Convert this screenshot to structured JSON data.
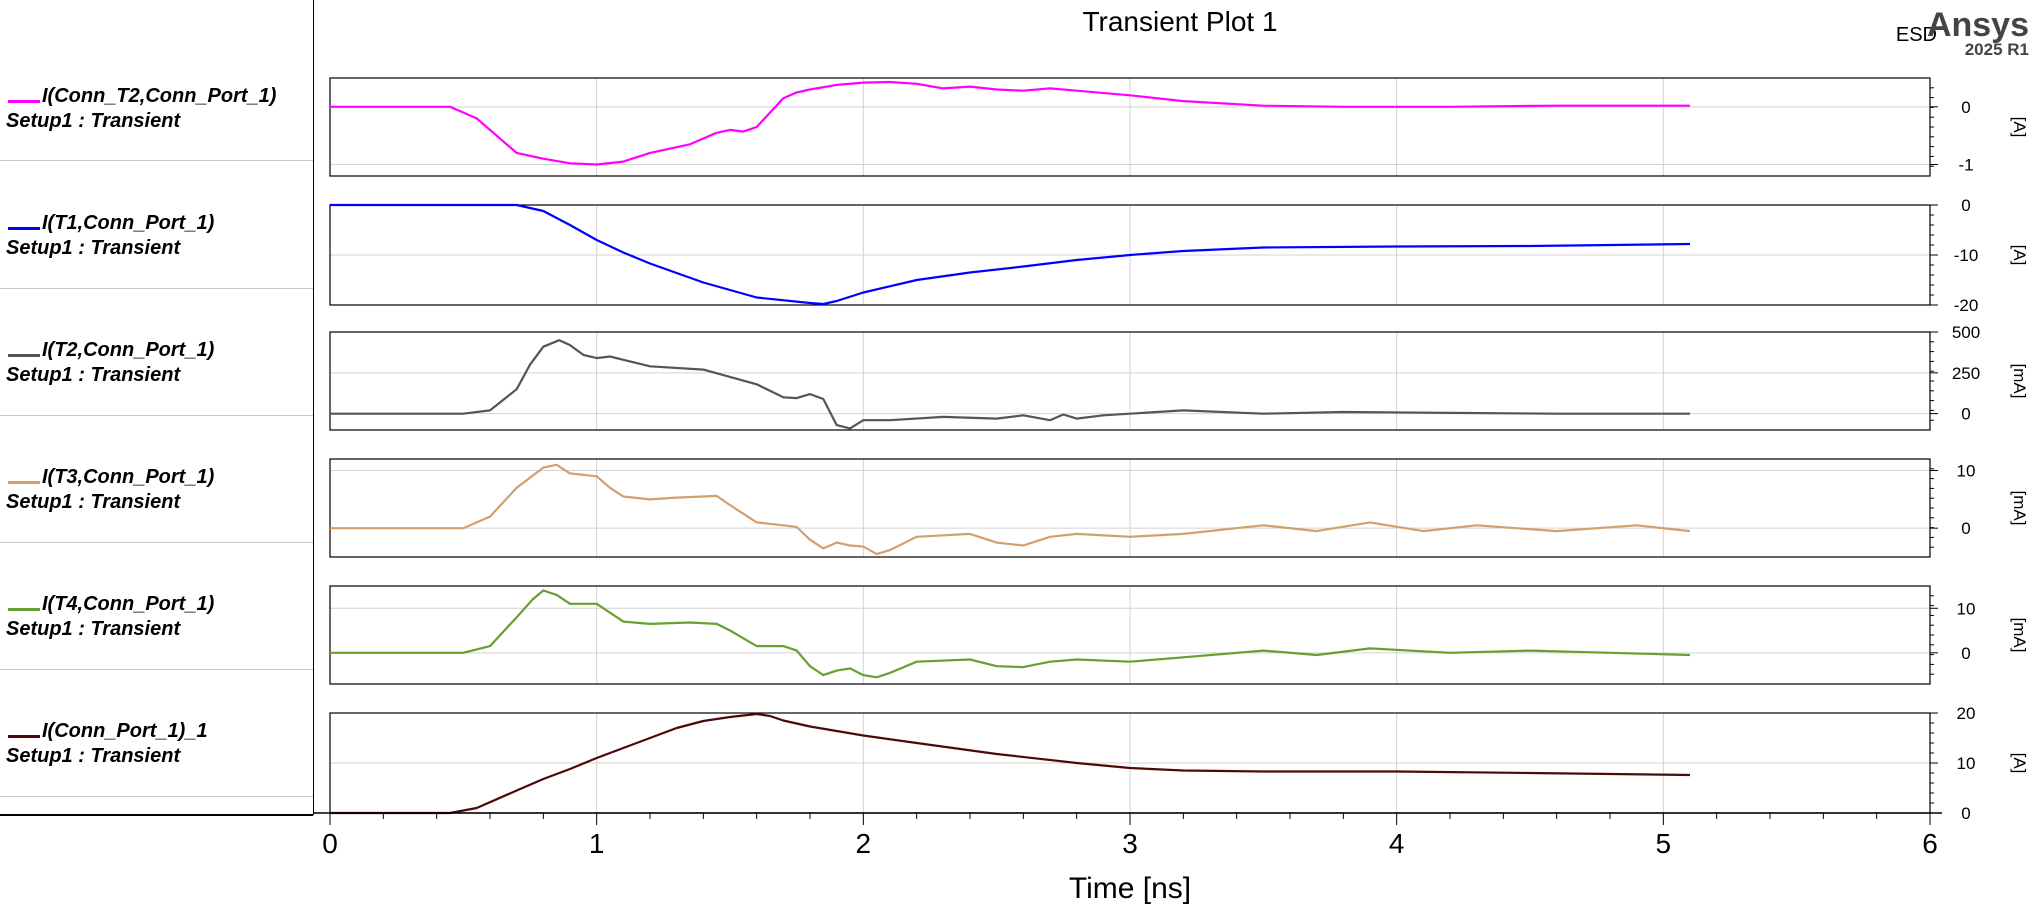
{
  "plot": {
    "title": "Transient Plot 1",
    "brand": {
      "tag": "ESD",
      "name": "Ansys",
      "version": "2025 R1"
    }
  },
  "colors": {
    "grid": "#d3d3d3",
    "frame": "#000000",
    "background": "#ffffff"
  },
  "chart_data": {
    "type": "line",
    "title": "Transient Plot 1",
    "xlabel": "Time [ns]",
    "xlim": [
      0,
      6
    ],
    "xticks": [
      0,
      1,
      2,
      3,
      4,
      5,
      6
    ],
    "grid": true,
    "legend_position": "left",
    "panels": [
      {
        "name": "I(Conn_T2,Conn_Port_1)",
        "setup": "Setup1 : Transient",
        "color": "#ff00ff",
        "ylabel": "[A]",
        "ylim": [
          -1.2,
          0.5
        ],
        "yticks": [
          {
            "v": 0,
            "label": "0"
          },
          {
            "v": -1,
            "label": "-1"
          }
        ],
        "x": [
          0,
          0.3,
          0.45,
          0.55,
          0.65,
          0.7,
          0.8,
          0.9,
          1.0,
          1.1,
          1.2,
          1.35,
          1.45,
          1.5,
          1.55,
          1.6,
          1.65,
          1.7,
          1.75,
          1.8,
          1.9,
          2.0,
          2.1,
          2.2,
          2.3,
          2.4,
          2.5,
          2.6,
          2.7,
          2.8,
          3.0,
          3.2,
          3.5,
          3.8,
          4.2,
          4.6,
          5.1
        ],
        "y": [
          0,
          0,
          0,
          -0.2,
          -0.6,
          -0.8,
          -0.9,
          -0.98,
          -1.0,
          -0.95,
          -0.8,
          -0.65,
          -0.45,
          -0.4,
          -0.43,
          -0.35,
          -0.1,
          0.15,
          0.25,
          0.3,
          0.38,
          0.42,
          0.43,
          0.4,
          0.32,
          0.35,
          0.3,
          0.28,
          0.32,
          0.28,
          0.2,
          0.1,
          0.02,
          0.0,
          0.0,
          0.02,
          0.02
        ]
      },
      {
        "name": "I(T1,Conn_Port_1)",
        "setup": "Setup1 : Transient",
        "color": "#0000ff",
        "ylabel": "[A]",
        "ylim": [
          -20,
          0
        ],
        "yticks": [
          {
            "v": 0,
            "label": "0"
          },
          {
            "v": -10,
            "label": "-10"
          },
          {
            "v": -20,
            "label": "-20"
          }
        ],
        "x": [
          0,
          0.5,
          0.7,
          0.8,
          0.9,
          1.0,
          1.1,
          1.2,
          1.4,
          1.6,
          1.8,
          1.85,
          1.9,
          2.0,
          2.2,
          2.4,
          2.6,
          2.8,
          3.0,
          3.2,
          3.5,
          4.0,
          4.5,
          5.1
        ],
        "y": [
          0,
          0,
          0,
          -1.2,
          -4,
          -7,
          -9.5,
          -11.7,
          -15.5,
          -18.5,
          -19.6,
          -19.8,
          -19.2,
          -17.5,
          -15,
          -13.5,
          -12.3,
          -11,
          -10,
          -9.2,
          -8.5,
          -8.3,
          -8.2,
          -7.8
        ]
      },
      {
        "name": "I(T2,Conn_Port_1)",
        "setup": "Setup1 : Transient",
        "color": "#555555",
        "ylabel": "[mA]",
        "ylim": [
          -100,
          500
        ],
        "yticks": [
          {
            "v": 500,
            "label": "500"
          },
          {
            "v": 250,
            "label": "250"
          },
          {
            "v": 0,
            "label": "0"
          }
        ],
        "x": [
          0,
          0.5,
          0.6,
          0.7,
          0.75,
          0.8,
          0.86,
          0.9,
          0.95,
          1.0,
          1.05,
          1.1,
          1.2,
          1.4,
          1.6,
          1.7,
          1.75,
          1.8,
          1.85,
          1.9,
          1.95,
          2.0,
          2.1,
          2.3,
          2.5,
          2.6,
          2.7,
          2.75,
          2.8,
          2.9,
          3.0,
          3.2,
          3.5,
          3.8,
          4.2,
          4.6,
          5.1
        ],
        "y": [
          0,
          0,
          20,
          150,
          300,
          410,
          450,
          420,
          360,
          340,
          350,
          330,
          290,
          270,
          180,
          100,
          95,
          120,
          90,
          -70,
          -90,
          -40,
          -40,
          -20,
          -30,
          -10,
          -40,
          -5,
          -30,
          -10,
          0,
          20,
          0,
          10,
          5,
          0,
          0
        ]
      },
      {
        "name": "I(T3,Conn_Port_1)",
        "setup": "Setup1 : Transient",
        "color": "#d2a06e",
        "ylabel": "[mA]",
        "ylim": [
          -5,
          12
        ],
        "yticks": [
          {
            "v": 10,
            "label": "10"
          },
          {
            "v": 0,
            "label": "0"
          }
        ],
        "x": [
          0,
          0.5,
          0.6,
          0.7,
          0.8,
          0.85,
          0.9,
          1.0,
          1.05,
          1.1,
          1.2,
          1.3,
          1.4,
          1.45,
          1.5,
          1.6,
          1.7,
          1.75,
          1.8,
          1.85,
          1.9,
          1.95,
          2.0,
          2.05,
          2.1,
          2.2,
          2.4,
          2.5,
          2.6,
          2.7,
          2.8,
          3.0,
          3.2,
          3.5,
          3.7,
          3.9,
          4.1,
          4.3,
          4.6,
          4.9,
          5.1
        ],
        "y": [
          0,
          0,
          2,
          7,
          10.5,
          11,
          9.5,
          9,
          7,
          5.5,
          5,
          5.3,
          5.5,
          5.6,
          4,
          1,
          0.5,
          0.2,
          -2,
          -3.5,
          -2.5,
          -3,
          -3.2,
          -4.5,
          -3.8,
          -1.5,
          -1.0,
          -2.5,
          -3,
          -1.5,
          -1.0,
          -1.5,
          -1.0,
          0.5,
          -0.5,
          1,
          -0.5,
          0.5,
          -0.5,
          0.5,
          -0.5
        ]
      },
      {
        "name": "I(T4,Conn_Port_1)",
        "setup": "Setup1 : Transient",
        "color": "#66a02e",
        "ylabel": "[mA]",
        "ylim": [
          -7,
          15
        ],
        "yticks": [
          {
            "v": 10,
            "label": "10"
          },
          {
            "v": 0,
            "label": "0"
          }
        ],
        "x": [
          0,
          0.5,
          0.6,
          0.7,
          0.76,
          0.8,
          0.85,
          0.9,
          1.0,
          1.05,
          1.1,
          1.2,
          1.35,
          1.45,
          1.5,
          1.6,
          1.7,
          1.75,
          1.8,
          1.85,
          1.9,
          1.95,
          2.0,
          2.05,
          2.1,
          2.2,
          2.4,
          2.5,
          2.6,
          2.7,
          2.8,
          3.0,
          3.2,
          3.5,
          3.7,
          3.9,
          4.2,
          4.5,
          4.8,
          5.1
        ],
        "y": [
          0,
          0,
          1.5,
          8,
          12,
          14,
          13,
          11,
          11,
          9,
          7,
          6.5,
          6.8,
          6.5,
          5,
          1.5,
          1.5,
          0.5,
          -3,
          -5,
          -4,
          -3.5,
          -5,
          -5.5,
          -4.5,
          -2,
          -1.5,
          -3,
          -3.2,
          -2,
          -1.5,
          -2,
          -1.0,
          0.5,
          -0.5,
          1,
          0,
          0.5,
          0,
          -0.5
        ]
      },
      {
        "name": "I(Conn_Port_1)_1",
        "setup": "Setup1 : Transient",
        "color": "#4a0a0a",
        "ylabel": "[A]",
        "ylim": [
          0,
          20
        ],
        "yticks": [
          {
            "v": 20,
            "label": "20"
          },
          {
            "v": 10,
            "label": "10"
          },
          {
            "v": 0,
            "label": "0"
          }
        ],
        "x": [
          0,
          0.45,
          0.55,
          0.7,
          0.8,
          0.9,
          1.0,
          1.1,
          1.2,
          1.3,
          1.4,
          1.5,
          1.6,
          1.65,
          1.7,
          1.8,
          2.0,
          2.2,
          2.5,
          2.8,
          3.0,
          3.2,
          3.5,
          4.0,
          4.5,
          5.1
        ],
        "y": [
          0,
          0,
          1,
          4.5,
          6.8,
          8.8,
          11,
          13,
          15,
          17,
          18.4,
          19.2,
          19.8,
          19.4,
          18.5,
          17.3,
          15.5,
          14,
          11.8,
          10,
          9,
          8.5,
          8.3,
          8.3,
          8.0,
          7.6
        ]
      }
    ]
  }
}
